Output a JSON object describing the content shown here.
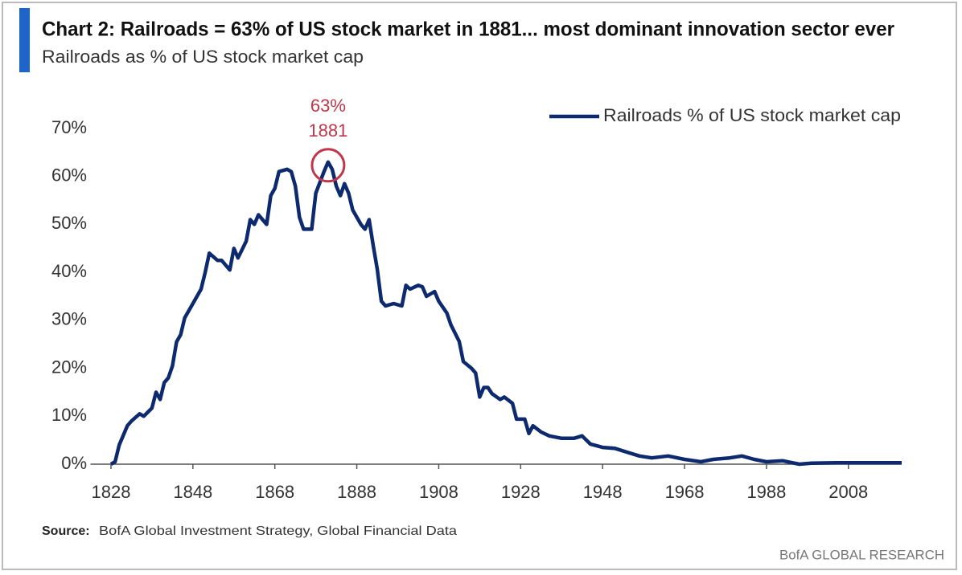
{
  "chart_data": {
    "type": "line",
    "title": "Chart 2: Railroads = 63% of US stock market in 1881... most dominant innovation sector ever",
    "subtitle": "Railroads as % of US stock market cap",
    "source_label": "Source:",
    "source_text": "BofA Global Investment Strategy, Global Financial Data",
    "brand": "BofA GLOBAL RESEARCH",
    "annotations": [
      {
        "label": "63%"
      },
      {
        "label": "1881"
      }
    ],
    "legend": "upper right",
    "grid": false,
    "x": [
      1828,
      1829,
      1830,
      1832,
      1833,
      1835,
      1836,
      1838,
      1839,
      1840,
      1841,
      1842,
      1843,
      1844,
      1845,
      1846,
      1848,
      1850,
      1851,
      1852,
      1854,
      1855,
      1857,
      1858,
      1859,
      1861,
      1862,
      1863,
      1864,
      1866,
      1867,
      1868,
      1869,
      1871,
      1872,
      1873,
      1874,
      1875,
      1877,
      1878,
      1880,
      1881,
      1882,
      1883,
      1884,
      1885,
      1886,
      1887,
      1889,
      1890,
      1891,
      1892,
      1893,
      1894,
      1895,
      1897,
      1899,
      1900,
      1901,
      1903,
      1904,
      1905,
      1907,
      1908,
      1910,
      1911,
      1913,
      1914,
      1916,
      1917,
      1918,
      1919,
      1920,
      1921,
      1923,
      1924,
      1926,
      1927,
      1929,
      1930,
      1931,
      1933,
      1935,
      1938,
      1941,
      1943,
      1945,
      1948,
      1951,
      1954,
      1957,
      1960,
      1964,
      1968,
      1972,
      1975,
      1979,
      1982,
      1985,
      1988,
      1992,
      1996,
      1999,
      2005,
      2011,
      2021
    ],
    "series": [
      {
        "name": "Railroads % of US stock market cap",
        "color": "#0d2a6e",
        "values": [
          0,
          0.5,
          4,
          8,
          9,
          10.5,
          10,
          11.7,
          15,
          13.5,
          17,
          18,
          20.5,
          25.5,
          27,
          30.5,
          33.5,
          36.5,
          40,
          44,
          42.5,
          42.5,
          40.5,
          45,
          43,
          46.5,
          51,
          50,
          52,
          50,
          56,
          57.5,
          61,
          61.5,
          61,
          58,
          51.5,
          49,
          49,
          56.5,
          61,
          63,
          61.5,
          58,
          56,
          58.5,
          56.5,
          53,
          50,
          49,
          51,
          45.7,
          40.7,
          34,
          33,
          33.5,
          33,
          37.3,
          36.5,
          37.3,
          37,
          35,
          36,
          34,
          31.5,
          29,
          25.6,
          21.4,
          20,
          19,
          14,
          16,
          16,
          14.7,
          13.5,
          14,
          12.7,
          9.4,
          9.4,
          6.4,
          8,
          6.7,
          5.9,
          5.4,
          5.4,
          5.9,
          4.2,
          3.5,
          3.3,
          2.5,
          1.7,
          1.3,
          1.7,
          1,
          0.5,
          1,
          1.3,
          1.7,
          1,
          0.5,
          0.7,
          0,
          0.2,
          0.3,
          0.3,
          0.3
        ]
      }
    ],
    "xlim": [
      1823,
      2021
    ],
    "xticks": [
      1828,
      1848,
      1868,
      1888,
      1908,
      1928,
      1948,
      1968,
      1988,
      2008
    ],
    "ylim": [
      0,
      70
    ],
    "yticks": [
      {
        "value": 0,
        "label": "0%"
      },
      {
        "value": 10,
        "label": "10%"
      },
      {
        "value": 20,
        "label": "20%"
      },
      {
        "value": 30,
        "label": "30%"
      },
      {
        "value": 40,
        "label": "40%"
      },
      {
        "value": 50,
        "label": "50%"
      },
      {
        "value": 60,
        "label": "60%"
      },
      {
        "value": 70,
        "label": "70%"
      }
    ]
  }
}
